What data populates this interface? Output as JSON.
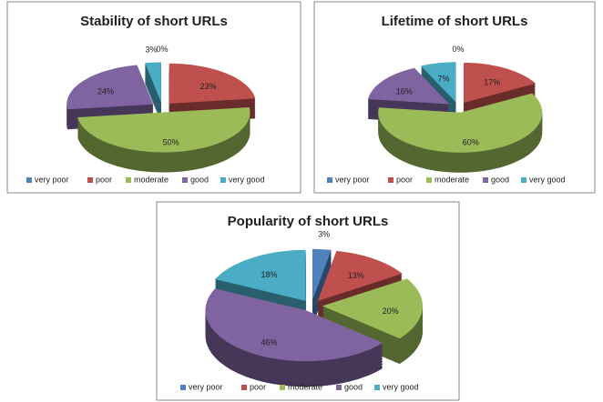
{
  "chart_data": [
    {
      "type": "pie",
      "title": "Stability of short URLs",
      "categories": [
        "very poor",
        "poor",
        "moderate",
        "good",
        "very good"
      ],
      "values": [
        0,
        23,
        50,
        24,
        3
      ],
      "value_labels": [
        "0%",
        "23%",
        "50%",
        "24%",
        "3%"
      ],
      "colors": [
        "#4f81bd",
        "#c0504d",
        "#9bbb59",
        "#8064a2",
        "#4bacc6"
      ]
    },
    {
      "type": "pie",
      "title": "Lifetime of short URLs",
      "categories": [
        "very poor",
        "poor",
        "moderate",
        "good",
        "very good"
      ],
      "values": [
        0,
        17,
        60,
        16,
        7
      ],
      "value_labels": [
        "0%",
        "17%",
        "60%",
        "16%",
        "7%"
      ],
      "colors": [
        "#4f81bd",
        "#c0504d",
        "#9bbb59",
        "#8064a2",
        "#4bacc6"
      ]
    },
    {
      "type": "pie",
      "title": "Popularity of short URLs",
      "categories": [
        "very poor",
        "poor",
        "moderate",
        "good",
        "very good"
      ],
      "values": [
        3,
        13,
        20,
        46,
        18
      ],
      "value_labels": [
        "3%",
        "13%",
        "20%",
        "46%",
        "18%"
      ],
      "colors": [
        "#4f81bd",
        "#c0504d",
        "#9bbb59",
        "#8064a2",
        "#4bacc6"
      ]
    }
  ]
}
